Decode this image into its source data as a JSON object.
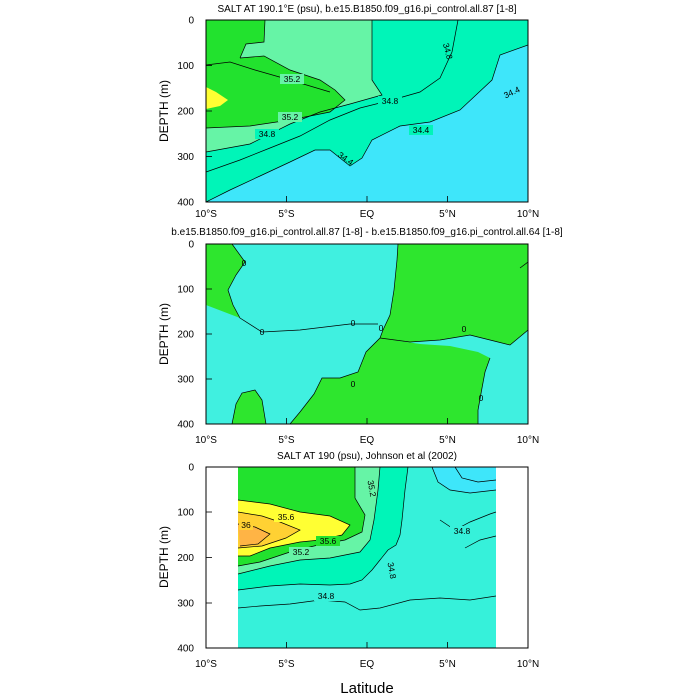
{
  "chart_data": [
    {
      "type": "contour",
      "title": "SALT AT 190.1°E (psu), b.e15.B1850.f09_g16.pi_control.all.87 [1-8]",
      "ylabel": "DEPTH (m)",
      "xlabel": "",
      "x_ticks": [
        "10°S",
        "5°S",
        "EQ",
        "5°N",
        "10°N"
      ],
      "y_ticks": [
        "0",
        "100",
        "200",
        "300",
        "400"
      ],
      "xlim": [
        -10,
        10
      ],
      "ylim": [
        400,
        0
      ],
      "contour_labels": [
        "35.2",
        "35.2",
        "34.8",
        "34.8",
        "34.8",
        "34.4",
        "34.4",
        "34.4"
      ]
    },
    {
      "type": "contour",
      "title": "b.e15.B1850.f09_g16.pi_control.all.87 [1-8] - b.e15.B1850.f09_g16.pi_control.all.64 [1-8]",
      "ylabel": "DEPTH (m)",
      "xlabel": "",
      "x_ticks": [
        "10°S",
        "5°S",
        "EQ",
        "5°N",
        "10°N"
      ],
      "y_ticks": [
        "0",
        "100",
        "200",
        "300",
        "400"
      ],
      "xlim": [
        -10,
        10
      ],
      "ylim": [
        400,
        0
      ],
      "contour_labels": [
        "0",
        "0",
        "0",
        "0",
        "0",
        "0",
        "0"
      ]
    },
    {
      "type": "contour",
      "title": "SALT AT 190 (psu), Johnson et al (2002)",
      "ylabel": "DEPTH (m)",
      "xlabel": "Latitude",
      "x_ticks": [
        "10°S",
        "5°S",
        "EQ",
        "5°N",
        "10°N"
      ],
      "y_ticks": [
        "0",
        "100",
        "200",
        "300",
        "400"
      ],
      "xlim": [
        -10,
        10
      ],
      "ylim": [
        400,
        0
      ],
      "data_xlim": [
        -8,
        8
      ],
      "contour_labels": [
        "36",
        "35.6",
        "35.6",
        "35.2",
        "35.2",
        "34.8",
        "34.8",
        "34.8",
        "34.8"
      ]
    }
  ],
  "colors": {
    "fresh": "#3ee6fa",
    "low": "#00f5b8",
    "mid": "#66f4a6",
    "high": "#22e22e",
    "higher": "#ffff33",
    "highest": "#ffd133",
    "peak": "#ffb445",
    "diff_pos": "#2ee62e",
    "diff_zero": "#40f0e0",
    "obs_base": "#36f1da"
  }
}
